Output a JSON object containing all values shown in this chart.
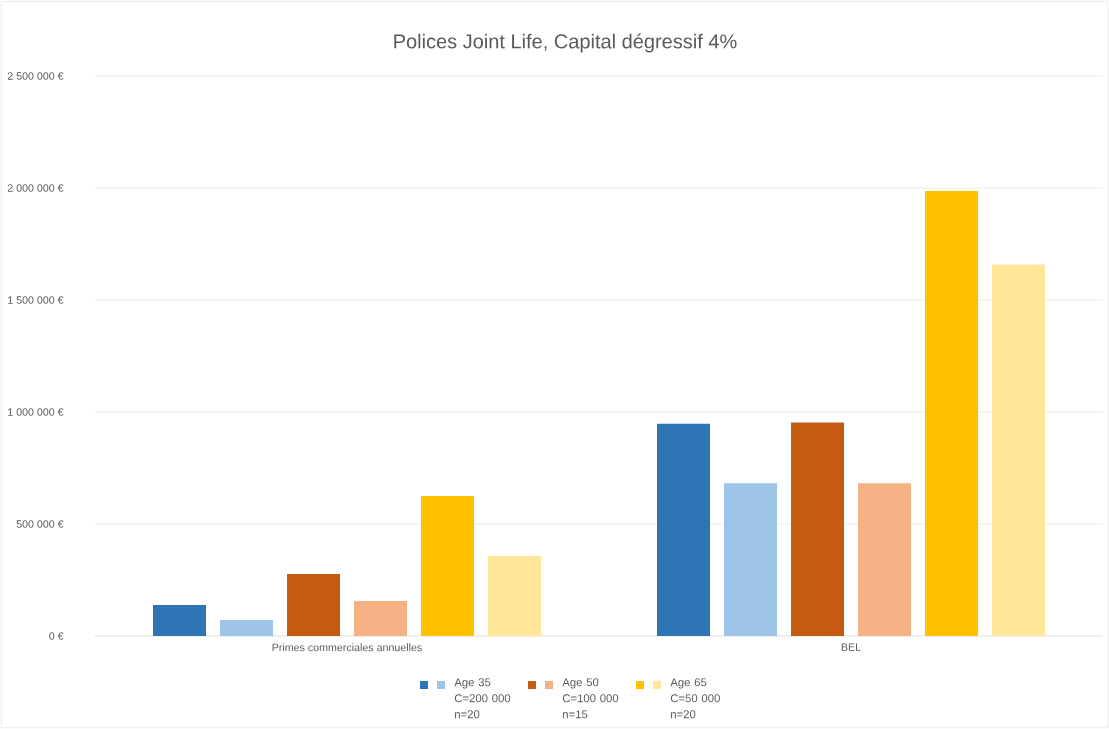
{
  "chart_data": {
    "type": "bar",
    "title": "Polices Joint Life, Capital dégressif 4%",
    "categories": [
      "Primes commerciales annuelles",
      "BEL"
    ],
    "series": [
      {
        "color": "#2e75b6",
        "values": [
          138000,
          948000
        ]
      },
      {
        "name": "Age 35 C=200 000 n=20",
        "color": "#9dc3e6",
        "values": [
          71000,
          682000
        ]
      },
      {
        "color": "#c55a11",
        "values": [
          277000,
          953000
        ]
      },
      {
        "name": "Age 50 C=100 000 n=15",
        "color": "#f4b183",
        "values": [
          156000,
          682000
        ]
      },
      {
        "color": "#ffc000",
        "values": [
          625000,
          1987000
        ]
      },
      {
        "name": "Age 65 C=50 000 n=20",
        "color": "#ffe699",
        "values": [
          357000,
          1659000
        ]
      }
    ],
    "ylim": [
      0,
      2500000
    ],
    "yticks": [
      {
        "value": 0,
        "label": "0 €"
      },
      {
        "value": 500000,
        "label": "500 000 €"
      },
      {
        "value": 1000000,
        "label": "1 000 000 €"
      },
      {
        "value": 1500000,
        "label": "1 500 000 €"
      },
      {
        "value": 2000000,
        "label": "2 000 000 €"
      },
      {
        "value": 2500000,
        "label": "2 500 000 €"
      }
    ],
    "grid": "y",
    "legend": "bottom"
  }
}
